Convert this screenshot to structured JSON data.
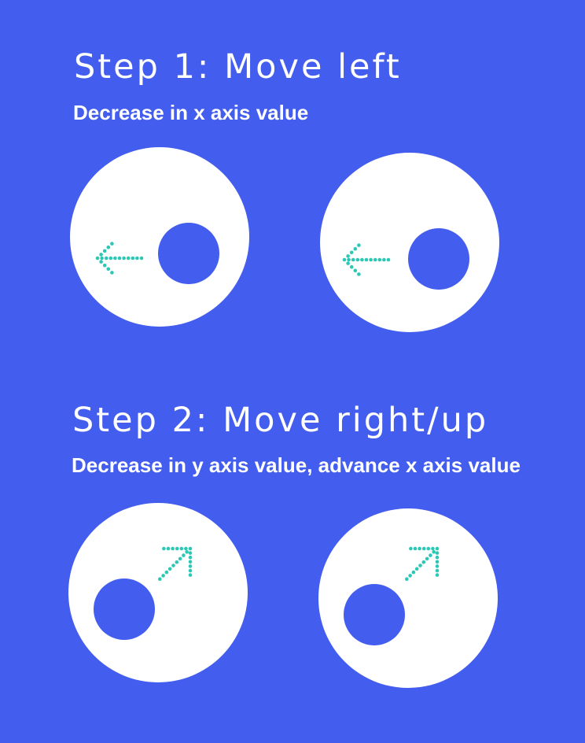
{
  "colors": {
    "background": "#435def",
    "circle": "#ffffff",
    "ball": "#435def",
    "arrow": "#2cc8b5"
  },
  "steps": [
    {
      "title": "Step 1: Move left",
      "subtitle": "Decrease in x axis value",
      "direction": "left",
      "arrow_icon": "dotted-left-arrow-icon",
      "frames": 2
    },
    {
      "title": "Step 2: Move right/up",
      "subtitle": "Decrease in y axis value, advance x axis value",
      "direction": "up-right",
      "arrow_icon": "dotted-up-right-arrow-icon",
      "frames": 2
    }
  ]
}
